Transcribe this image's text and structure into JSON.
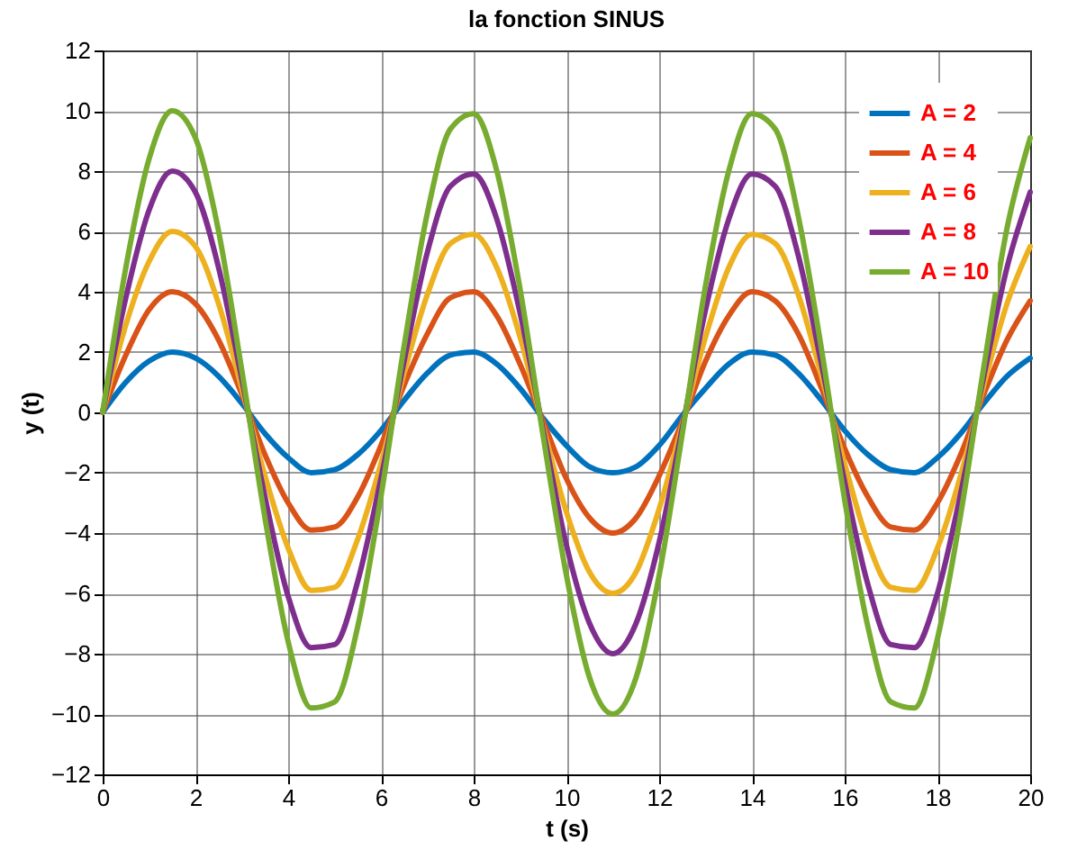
{
  "chart_data": {
    "type": "line",
    "title": "la fonction SINUS",
    "xlabel": "t (s)",
    "ylabel": "y (t)",
    "x": [
      0,
      0.5,
      1,
      1.5,
      2,
      2.5,
      3,
      3.5,
      4,
      4.5,
      5,
      5.5,
      6,
      6.5,
      7,
      7.5,
      8,
      8.5,
      9,
      9.5,
      10,
      10.5,
      11,
      11.5,
      12,
      12.5,
      13,
      13.5,
      14,
      14.5,
      15,
      15.5,
      16,
      16.5,
      17,
      17.5,
      18,
      18.5,
      19,
      19.5,
      20
    ],
    "series": [
      {
        "name": "A = 2",
        "color": "#0072bd",
        "values": [
          0,
          1.0,
          1.7,
          2.0,
          1.8,
          1.2,
          0.3,
          -0.7,
          -1.5,
          -2.0,
          -1.9,
          -1.4,
          -0.6,
          0.4,
          1.3,
          1.9,
          2.0,
          1.6,
          0.8,
          -0.2,
          -1.1,
          -1.8,
          -2.0,
          -1.8,
          -1.1,
          -0.1,
          0.8,
          1.6,
          2.0,
          1.9,
          1.3,
          0.4,
          -0.6,
          -1.4,
          -1.9,
          -2.0,
          -1.5,
          -0.7,
          0.3,
          1.2,
          1.8
        ]
      },
      {
        "name": "A = 4",
        "color": "#d95319",
        "values": [
          0,
          1.9,
          3.4,
          4.0,
          3.6,
          2.4,
          0.6,
          -1.4,
          -3.0,
          -3.9,
          -3.8,
          -2.8,
          -1.1,
          0.9,
          2.6,
          3.8,
          4.0,
          3.2,
          1.6,
          -0.3,
          -2.2,
          -3.5,
          -4.0,
          -3.5,
          -2.1,
          -0.3,
          1.7,
          3.2,
          4.0,
          3.7,
          2.6,
          0.8,
          -1.2,
          -2.8,
          -3.8,
          -3.9,
          -3.0,
          -1.4,
          0.6,
          2.4,
          3.7
        ]
      },
      {
        "name": "A = 6",
        "color": "#edb120",
        "values": [
          0,
          2.9,
          5.0,
          6.0,
          5.5,
          3.6,
          0.8,
          -2.1,
          -4.5,
          -5.9,
          -5.8,
          -4.2,
          -1.7,
          1.3,
          3.9,
          5.6,
          5.9,
          4.8,
          2.5,
          -0.5,
          -3.3,
          -5.3,
          -6.0,
          -5.3,
          -3.2,
          -0.4,
          2.5,
          4.8,
          5.9,
          5.6,
          3.9,
          1.2,
          -1.7,
          -4.3,
          -5.8,
          -5.9,
          -4.5,
          -2.1,
          0.9,
          3.6,
          5.5
        ]
      },
      {
        "name": "A = 8",
        "color": "#7e2f8e",
        "values": [
          0,
          3.8,
          6.7,
          8.0,
          7.3,
          4.8,
          1.1,
          -2.8,
          -6.1,
          -7.8,
          -7.7,
          -5.6,
          -2.2,
          1.7,
          5.3,
          7.5,
          7.9,
          6.4,
          3.3,
          -0.6,
          -4.4,
          -7.0,
          -8.0,
          -7.0,
          -4.3,
          -0.5,
          3.4,
          6.4,
          7.9,
          7.5,
          5.2,
          1.6,
          -2.3,
          -5.7,
          -7.7,
          -7.8,
          -6.0,
          -2.7,
          1.2,
          4.8,
          7.3
        ]
      },
      {
        "name": "A = 10",
        "color": "#77ac30",
        "values": [
          0,
          4.8,
          8.4,
          10.0,
          9.1,
          6.0,
          1.4,
          -3.5,
          -7.6,
          -9.8,
          -9.6,
          -7.1,
          -2.8,
          2.2,
          6.6,
          9.4,
          9.9,
          8.0,
          4.1,
          -0.8,
          -5.4,
          -8.8,
          -10.0,
          -8.8,
          -5.4,
          -0.7,
          4.2,
          8.0,
          9.9,
          9.4,
          6.5,
          2.1,
          -2.9,
          -7.1,
          -9.6,
          -9.8,
          -7.5,
          -3.4,
          1.5,
          6.1,
          9.1
        ]
      }
    ],
    "xlim": [
      0,
      20
    ],
    "xticks": [
      0,
      2,
      4,
      6,
      8,
      10,
      12,
      14,
      16,
      18,
      20
    ],
    "ylim": [
      -12,
      12
    ],
    "yticks": [
      -12,
      -10,
      -8,
      -6,
      -4,
      -2,
      0,
      2,
      4,
      6,
      8,
      10,
      12
    ],
    "grid": true,
    "legend": "top right",
    "line_style": "solid",
    "marker": "none"
  }
}
